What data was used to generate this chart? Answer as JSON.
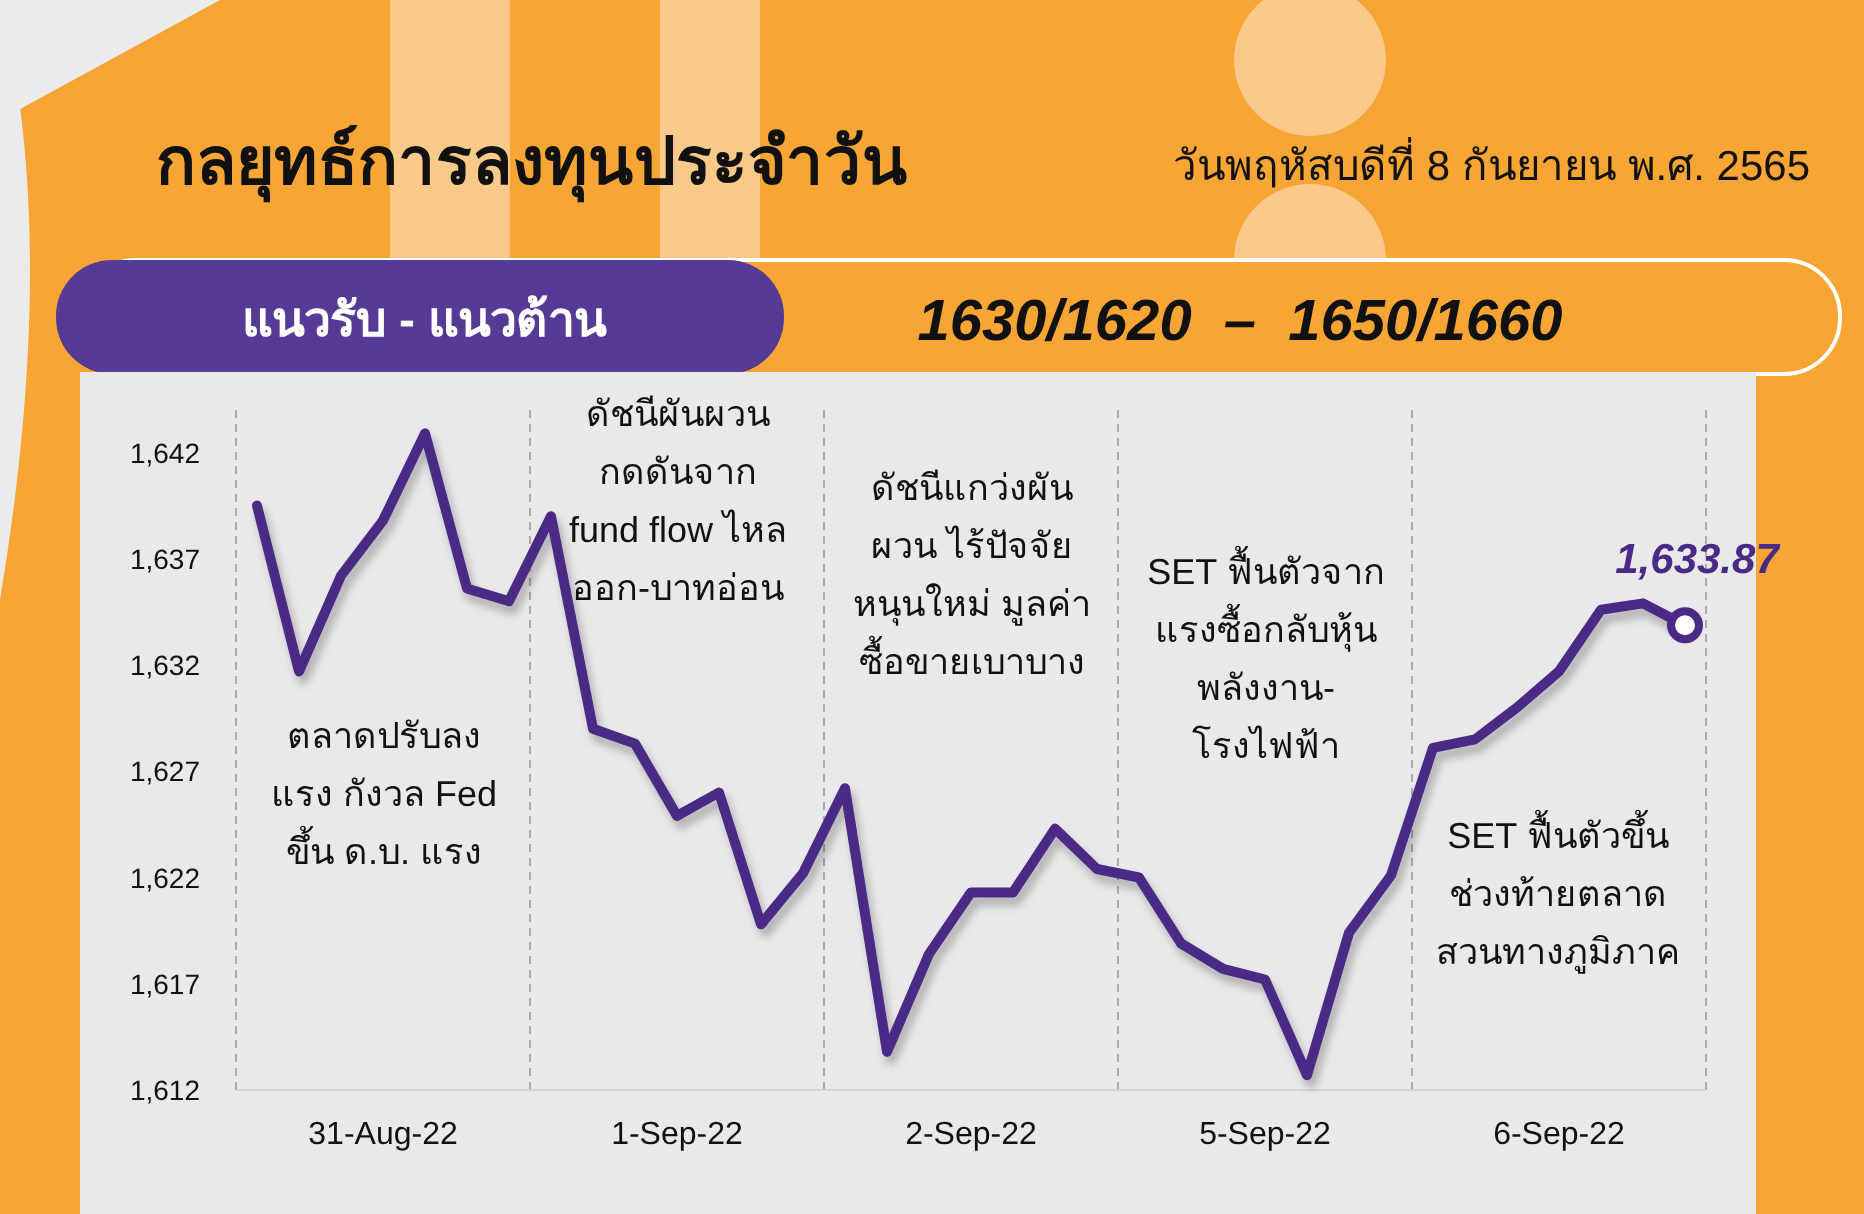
{
  "chart_data": {
    "type": "line",
    "title": "กลยุทธ์การลงทุนประจำวัน",
    "subtitle": "วันพฤหัสบดีที่ 8 กันยายน พ.ศ. 2565",
    "annotations": [
      "แนวรับ - แนวต้าน",
      "1630/1620  –  1650/1660",
      "ตลาดปรับลง\nแรง กังวล Fed\nขึ้น ด.บ. แรง",
      "ดัชนีผันผวน\nกดดันจาก\nfund flow ไหล\nออก-บาทอ่อน",
      "ดัชนีแกว่งผัน\nผวน ไร้ปัจจัย\nหนุนใหม่ มูลค่า\nซื้อขายเบาบาง",
      "SET ฟื้นตัวจาก\nแรงซื้อกลับหุ้น\nพลังงาน-\nโรงไฟฟ้า",
      "SET ฟื้นตัวขึ้น\nช่วงท้ายตลาด\nสวนทางภูมิภาค"
    ],
    "categories": [
      null,
      null,
      null,
      "31-Aug-22",
      null,
      null,
      null,
      null,
      null,
      null,
      "1-Sep-22",
      null,
      null,
      null,
      null,
      null,
      null,
      "2-Sep-22",
      null,
      null,
      null,
      null,
      null,
      null,
      "5-Sep-22",
      null,
      null,
      null,
      null,
      null,
      null,
      "6-Sep-22",
      null,
      null,
      null
    ],
    "series": [
      {
        "color": "#4b2a85",
        "values": [
          1639.5,
          1631.7,
          1636.2,
          1638.8,
          1642.9,
          1635.6,
          1635.0,
          1639.0,
          1629.0,
          1628.3,
          1624.9,
          1626.0,
          1619.8,
          1622.2,
          1626.2,
          1613.8,
          1618.4,
          1621.3,
          1621.3,
          1624.3,
          1622.4,
          1622.0,
          1618.9,
          1617.7,
          1617.2,
          1612.7,
          1619.4,
          1622.1,
          1628.1,
          1628.5,
          1630.0,
          1631.7,
          1634.6,
          1634.9,
          1633.87
        ],
        "value_labels": [
          null,
          null,
          null,
          null,
          null,
          null,
          null,
          null,
          null,
          null,
          null,
          null,
          null,
          null,
          null,
          null,
          null,
          null,
          null,
          null,
          null,
          null,
          null,
          null,
          null,
          null,
          null,
          null,
          null,
          null,
          null,
          null,
          null,
          null,
          "1,633.87"
        ]
      }
    ],
    "ylim": [
      1612,
      1644
    ],
    "yticks": [
      {
        "value": 1612,
        "label": "1,612"
      },
      {
        "value": 1617,
        "label": "1,617"
      },
      {
        "value": 1622,
        "label": "1,622"
      },
      {
        "value": 1627,
        "label": "1,627"
      },
      {
        "value": 1632,
        "label": "1,632"
      },
      {
        "value": 1637,
        "label": "1,637"
      },
      {
        "value": 1642,
        "label": "1,642"
      }
    ],
    "grid": "x",
    "marker": "none",
    "line_style": "solid"
  }
}
